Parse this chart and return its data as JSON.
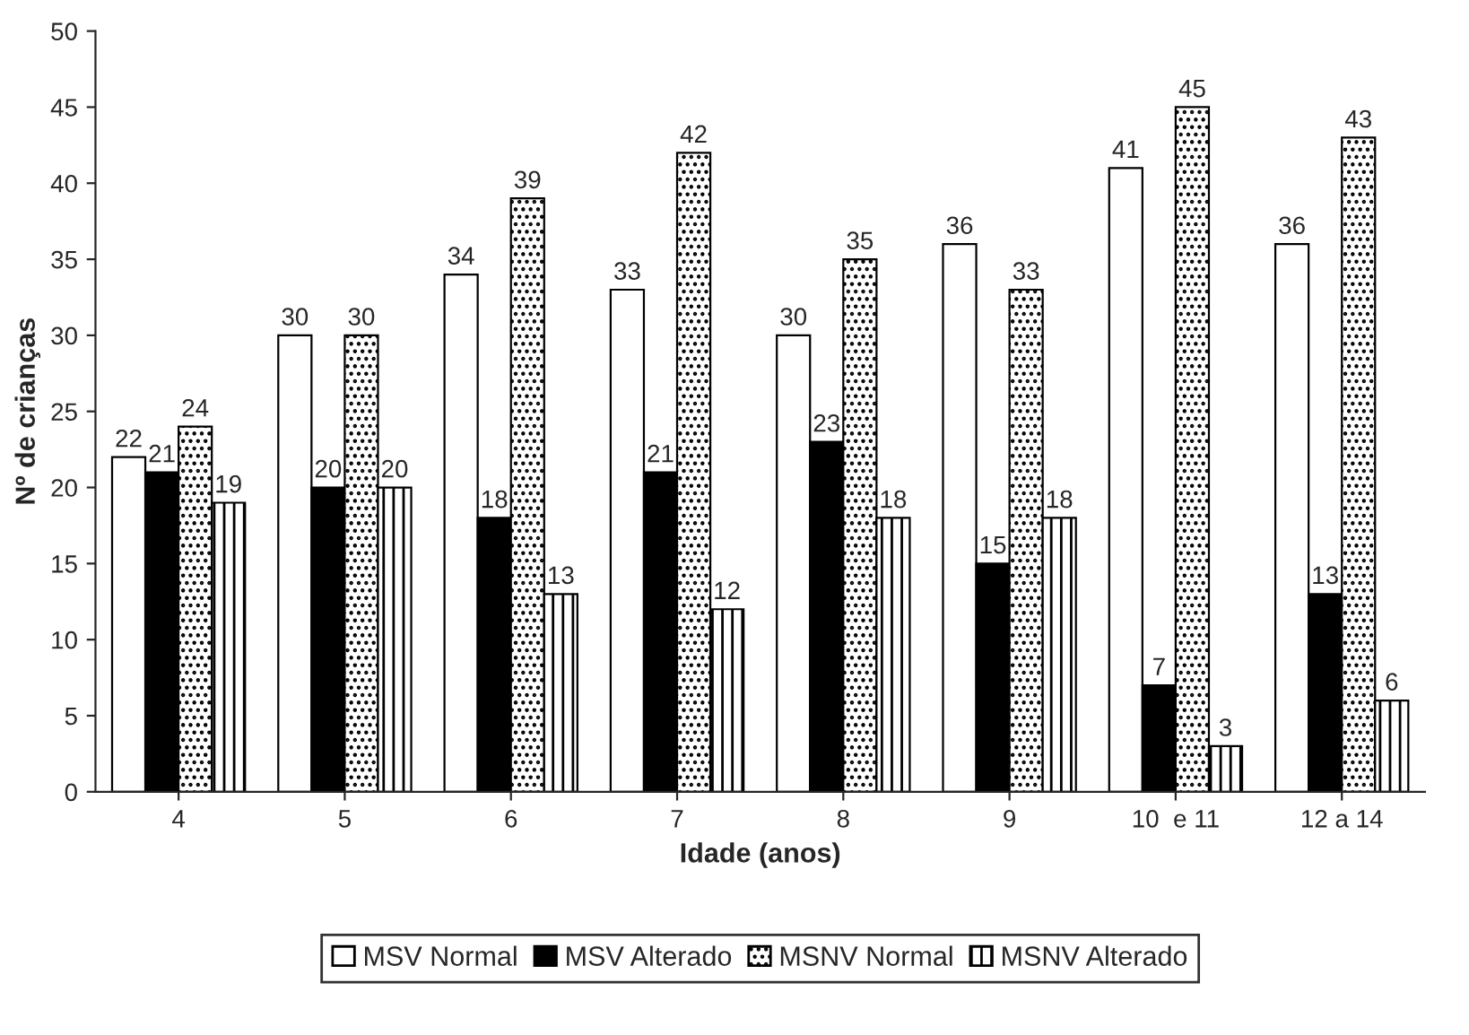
{
  "chart_data": {
    "type": "bar",
    "xlabel": "Idade (anos)",
    "ylabel": "Nº de crianças",
    "categories": [
      "4",
      "5",
      "6",
      "7",
      "8",
      "9",
      "10  e 11",
      "12 a 14"
    ],
    "series": [
      {
        "name": "MSV Normal",
        "color": "#ffffff",
        "values": [
          22,
          30,
          34,
          33,
          30,
          36,
          41,
          36
        ]
      },
      {
        "name": "MSV Alterado",
        "color": "#000000",
        "values": [
          21,
          20,
          18,
          21,
          23,
          15,
          7,
          13
        ]
      },
      {
        "name": "MSNV Normal",
        "color": "#000000",
        "values": [
          24,
          30,
          39,
          42,
          35,
          33,
          45,
          43
        ]
      },
      {
        "name": "MSNV Alterado",
        "color": "#000000",
        "values": [
          19,
          20,
          13,
          12,
          18,
          18,
          3,
          6
        ]
      }
    ],
    "ylim": [
      0,
      50
    ],
    "yticks": [
      0,
      5,
      10,
      15,
      20,
      25,
      30,
      35,
      40,
      45,
      50
    ],
    "data_labels": true,
    "grid": false,
    "legend": "bottom"
  }
}
